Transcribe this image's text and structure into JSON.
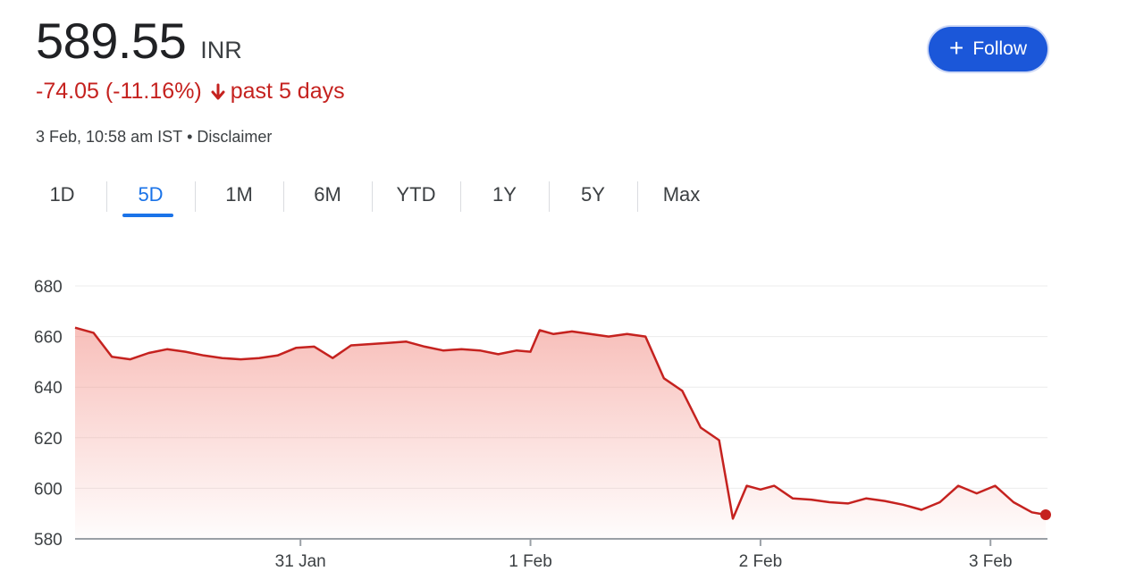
{
  "quote": {
    "price": "589.55",
    "currency": "INR",
    "change": "-74.05 (-11.16%)",
    "change_period": "past 5 days",
    "timestamp": "3 Feb, 10:58 am IST",
    "separator": "•",
    "disclaimer": "Disclaimer",
    "down_color": "#c5221f"
  },
  "follow_button": {
    "label": "Follow",
    "icon": "plus-icon",
    "color": "#1b57d9"
  },
  "range_tabs": [
    {
      "label": "1D",
      "active": false
    },
    {
      "label": "5D",
      "active": true
    },
    {
      "label": "1M",
      "active": false
    },
    {
      "label": "6M",
      "active": false
    },
    {
      "label": "YTD",
      "active": false
    },
    {
      "label": "1Y",
      "active": false
    },
    {
      "label": "5Y",
      "active": false
    },
    {
      "label": "Max",
      "active": false
    }
  ],
  "chart_data": {
    "type": "area",
    "title": "",
    "xlabel": "",
    "ylabel": "",
    "ylim": [
      580,
      680
    ],
    "y_ticks": [
      680,
      660,
      640,
      620,
      600,
      580
    ],
    "x_ticks": [
      "31 Jan",
      "1 Feb",
      "2 Feb",
      "3 Feb"
    ],
    "x_tick_index": [
      24,
      49,
      74,
      99
    ],
    "grid": "horizontal",
    "line_color": "#c5221f",
    "fill_color": "#f28b82",
    "series": [
      {
        "values": [
          663.5,
          661.5,
          652,
          651,
          653.5,
          655,
          654,
          652.5,
          651.5,
          651,
          651.5,
          652.5,
          655.5,
          656,
          651.5,
          656.5,
          657,
          657.5,
          658,
          656,
          654.5,
          655,
          654.5,
          653,
          654.5,
          654,
          662.5,
          661,
          662,
          661,
          660,
          661,
          660,
          643.5,
          638.5,
          624,
          619,
          588,
          601,
          599.5,
          601,
          596,
          595.5,
          594.5,
          594,
          596,
          595,
          593.5,
          591.5,
          594.5,
          601,
          598,
          601,
          594.5,
          590.5,
          589.55
        ]
      }
    ],
    "x_positions": [
      0,
      2,
      4,
      6,
      8,
      10,
      12,
      14,
      16,
      18,
      20,
      22,
      24,
      26,
      28,
      30,
      32,
      34,
      36,
      38,
      40,
      42,
      44,
      46,
      48,
      49.5,
      50.5,
      52,
      54,
      56,
      58,
      60,
      62,
      64,
      66,
      68,
      70,
      71.5,
      73,
      74.5,
      76,
      78,
      80,
      82,
      84,
      86,
      88,
      90,
      92,
      94,
      96,
      98,
      100,
      102,
      104,
      105.5
    ]
  }
}
